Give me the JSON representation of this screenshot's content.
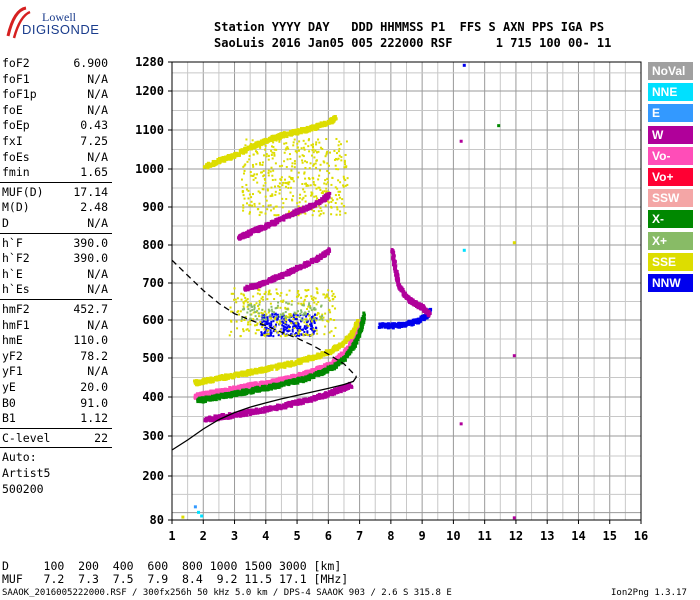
{
  "logo": {
    "line1": "Lowell",
    "line2": "DIGISONDE"
  },
  "header": {
    "line1": "Station YYYY DAY   DDD HHMMSS P1  FFS S AXN PPS IGA PS",
    "line2": "SaoLuis 2016 Jan05 005 222000 RSF      1 715 100 00- 11"
  },
  "params": {
    "group1": [
      {
        "label": "foF2",
        "value": "6.900"
      },
      {
        "label": "foF1",
        "value": "N/A"
      },
      {
        "label": "foF1p",
        "value": "N/A"
      },
      {
        "label": "foE",
        "value": "N/A"
      },
      {
        "label": "foEp",
        "value": "0.43"
      },
      {
        "label": "fxI",
        "value": "7.25"
      },
      {
        "label": "foEs",
        "value": "N/A"
      },
      {
        "label": "fmin",
        "value": "1.65"
      }
    ],
    "group2": [
      {
        "label": "MUF(D)",
        "value": "17.14"
      },
      {
        "label": "M(D)",
        "value": "2.48"
      },
      {
        "label": "D",
        "value": "N/A"
      }
    ],
    "group3": [
      {
        "label": "h`F",
        "value": "390.0"
      },
      {
        "label": "h`F2",
        "value": "390.0"
      },
      {
        "label": "h`E",
        "value": "N/A"
      },
      {
        "label": "h`Es",
        "value": "N/A"
      }
    ],
    "group4": [
      {
        "label": "hmF2",
        "value": "452.7"
      },
      {
        "label": "hmF1",
        "value": "N/A"
      },
      {
        "label": "hmE",
        "value": "110.0"
      },
      {
        "label": "yF2",
        "value": "78.2"
      },
      {
        "label": "yF1",
        "value": "N/A"
      },
      {
        "label": "yE",
        "value": "20.0"
      },
      {
        "label": "B0",
        "value": "91.0"
      },
      {
        "label": "B1",
        "value": "1.12"
      }
    ],
    "clevel": {
      "label": "C-level",
      "value": "22"
    },
    "auto": [
      "Auto:",
      "Artist5",
      "500200"
    ]
  },
  "legend": [
    {
      "label": "NoVal",
      "bg": "#a0a0a0",
      "fg": "#ffffff"
    },
    {
      "label": "NNE",
      "bg": "#00e0ff",
      "fg": "#ffffff"
    },
    {
      "label": "E",
      "bg": "#3399ff",
      "fg": "#ffffff"
    },
    {
      "label": "W",
      "bg": "#b0009a",
      "fg": "#ffffff"
    },
    {
      "label": "Vo-",
      "bg": "#ff4db8",
      "fg": "#ffffff"
    },
    {
      "label": "Vo+",
      "bg": "#ff0033",
      "fg": "#ffffff"
    },
    {
      "label": "SSW",
      "bg": "#f4a6a6",
      "fg": "#ffffff"
    },
    {
      "label": "X-",
      "bg": "#008800",
      "fg": "#ffffff"
    },
    {
      "label": "X+",
      "bg": "#88bb66",
      "fg": "#ffffff"
    },
    {
      "label": "SSE",
      "bg": "#dddd00",
      "fg": "#ffffff"
    },
    {
      "label": "NNW",
      "bg": "#0000ee",
      "fg": "#ffffff"
    }
  ],
  "footer": {
    "row1": "D     100  200  400  600  800 1000 1500 3000 [km]",
    "row2": "MUF   7.2  7.3  7.5  7.9  8.4  9.2 11.5 17.1 [MHz]",
    "note_left": "SAAOK_2016005222000.RSF / 300fx256h 50 kHz 5.0 km / DPS-4 SAAOK 903 / 2.6 S 315.8 E",
    "note_right": "Ion2Png 1.3.17"
  },
  "chart_data": {
    "type": "scatter",
    "xlim": [
      1,
      16
    ],
    "ylim": [
      80,
      1280
    ],
    "xticks": [
      1,
      2,
      3,
      4,
      5,
      6,
      7,
      8,
      9,
      10,
      11,
      12,
      13,
      14,
      15,
      16
    ],
    "yticks": [
      80,
      200,
      300,
      400,
      500,
      600,
      700,
      800,
      900,
      1000,
      1100,
      1200,
      1280
    ],
    "ytick_labels": [
      "80",
      "200",
      "300",
      "400",
      "500",
      "600",
      "700",
      "800",
      "900",
      "1000",
      "1100",
      "1200",
      "1280"
    ],
    "xtick_labels": [
      "1",
      "2",
      "3",
      "4",
      "5",
      "6",
      "7",
      "8",
      "9",
      "10",
      "11",
      "12",
      "13",
      "14",
      "15",
      "16"
    ],
    "grid": true,
    "profile_solid": [
      [
        1.0,
        265
      ],
      [
        1.5,
        290
      ],
      [
        2.0,
        318
      ],
      [
        2.5,
        342
      ],
      [
        3.0,
        360
      ],
      [
        3.5,
        374
      ],
      [
        4.0,
        385
      ],
      [
        4.5,
        395
      ],
      [
        5.0,
        404
      ],
      [
        5.5,
        413
      ],
      [
        6.0,
        422
      ],
      [
        6.5,
        432
      ],
      [
        6.8,
        440
      ],
      [
        6.9,
        452
      ]
    ],
    "profile_dashed": [
      [
        1.0,
        760
      ],
      [
        1.5,
        720
      ],
      [
        2.0,
        680
      ],
      [
        2.5,
        645
      ],
      [
        3.0,
        617
      ],
      [
        3.5,
        600
      ],
      [
        4.0,
        585
      ],
      [
        4.5,
        568
      ],
      [
        5.0,
        552
      ],
      [
        5.5,
        533
      ],
      [
        6.0,
        510
      ],
      [
        6.5,
        485
      ],
      [
        6.9,
        452
      ]
    ],
    "traces": [
      {
        "name": "F-trace-lower",
        "color": "#ff4db8",
        "points": [
          [
            1.7,
            405
          ],
          [
            2.0,
            410
          ],
          [
            2.5,
            418
          ],
          [
            3.0,
            425
          ],
          [
            3.5,
            433
          ],
          [
            4.0,
            440
          ],
          [
            4.5,
            448
          ],
          [
            5.0,
            458
          ],
          [
            5.5,
            470
          ],
          [
            6.0,
            487
          ],
          [
            6.3,
            505
          ],
          [
            6.6,
            530
          ],
          [
            6.8,
            560
          ],
          [
            7.0,
            600
          ]
        ]
      },
      {
        "name": "F-trace-x",
        "color": "#008800",
        "points": [
          [
            1.8,
            395
          ],
          [
            2.2,
            400
          ],
          [
            2.7,
            408
          ],
          [
            3.2,
            415
          ],
          [
            3.7,
            423
          ],
          [
            4.2,
            431
          ],
          [
            4.7,
            440
          ],
          [
            5.2,
            450
          ],
          [
            5.7,
            465
          ],
          [
            6.1,
            480
          ],
          [
            6.5,
            505
          ],
          [
            6.8,
            540
          ],
          [
            7.0,
            580
          ],
          [
            7.1,
            620
          ]
        ]
      },
      {
        "name": "F-trace-upper",
        "color": "#dddd00",
        "points": [
          [
            1.7,
            440
          ],
          [
            2.0,
            445
          ],
          [
            2.5,
            452
          ],
          [
            3.0,
            460
          ],
          [
            3.5,
            468
          ],
          [
            4.0,
            476
          ],
          [
            4.5,
            484
          ],
          [
            5.0,
            494
          ],
          [
            5.5,
            506
          ],
          [
            6.0,
            520
          ],
          [
            6.4,
            540
          ],
          [
            6.7,
            565
          ],
          [
            6.9,
            600
          ]
        ]
      },
      {
        "name": "low-W",
        "color": "#b0009a",
        "points": [
          [
            2.0,
            345
          ],
          [
            2.5,
            352
          ],
          [
            3.0,
            358
          ],
          [
            3.5,
            365
          ],
          [
            4.0,
            372
          ],
          [
            4.5,
            380
          ],
          [
            5.0,
            390
          ],
          [
            5.5,
            400
          ],
          [
            6.0,
            413
          ],
          [
            6.4,
            425
          ],
          [
            6.7,
            435
          ]
        ]
      },
      {
        "name": "multi-hop-1",
        "color": "#b0009a",
        "points": [
          [
            3.1,
            822
          ],
          [
            3.4,
            834
          ],
          [
            3.8,
            848
          ],
          [
            4.2,
            862
          ],
          [
            4.6,
            878
          ],
          [
            5.0,
            893
          ],
          [
            5.4,
            906
          ],
          [
            5.8,
            924
          ],
          [
            6.0,
            938
          ]
        ]
      },
      {
        "name": "multi-hop-1b",
        "color": "#b0009a",
        "points": [
          [
            3.3,
            690
          ],
          [
            3.7,
            698
          ],
          [
            4.1,
            712
          ],
          [
            4.5,
            725
          ],
          [
            4.9,
            740
          ],
          [
            5.3,
            755
          ],
          [
            5.7,
            772
          ],
          [
            6.0,
            790
          ]
        ]
      },
      {
        "name": "es-like",
        "color": "#0000ee",
        "points": [
          [
            7.6,
            590
          ],
          [
            8.0,
            588
          ],
          [
            8.4,
            592
          ],
          [
            8.8,
            600
          ],
          [
            9.1,
            615
          ],
          [
            9.2,
            630
          ]
        ]
      },
      {
        "name": "W-hook",
        "color": "#b0009a",
        "points": [
          [
            8.0,
            790
          ],
          [
            8.1,
            740
          ],
          [
            8.2,
            700
          ],
          [
            8.4,
            670
          ],
          [
            8.6,
            655
          ],
          [
            8.8,
            645
          ],
          [
            9.0,
            635
          ],
          [
            9.2,
            620
          ]
        ]
      },
      {
        "name": "yellow-top",
        "color": "#dddd00",
        "points": [
          [
            2.0,
            1010
          ],
          [
            2.5,
            1025
          ],
          [
            3.0,
            1040
          ],
          [
            3.5,
            1060
          ],
          [
            4.0,
            1078
          ],
          [
            4.5,
            1090
          ],
          [
            5.0,
            1100
          ],
          [
            5.5,
            1110
          ],
          [
            6.0,
            1125
          ],
          [
            6.2,
            1135
          ]
        ]
      }
    ],
    "clouds": [
      {
        "name": "upper-yellow",
        "color": "#dddd00",
        "x": [
          3.2,
          6.6
        ],
        "y": [
          880,
          1080
        ],
        "n": 420
      },
      {
        "name": "blue-f-cloud",
        "color": "#0000ee",
        "x": [
          3.8,
          5.6
        ],
        "y": [
          560,
          620
        ],
        "n": 260
      },
      {
        "name": "yellow-mid",
        "color": "#dddd00",
        "x": [
          2.8,
          6.2
        ],
        "y": [
          560,
          690
        ],
        "n": 260
      },
      {
        "name": "green-mid",
        "color": "#88bb66",
        "x": [
          3.2,
          5.8
        ],
        "y": [
          600,
          650
        ],
        "n": 90
      }
    ],
    "extra_points": [
      {
        "x": 10.3,
        "y": 1275,
        "color": "#0000ee"
      },
      {
        "x": 11.4,
        "y": 1115,
        "color": "#008800"
      },
      {
        "x": 10.2,
        "y": 1075,
        "color": "#b0009a"
      },
      {
        "x": 10.3,
        "y": 790,
        "color": "#00e0ff"
      },
      {
        "x": 11.9,
        "y": 510,
        "color": "#b0009a"
      },
      {
        "x": 10.2,
        "y": 335,
        "color": "#b0009a"
      },
      {
        "x": 11.9,
        "y": 90,
        "color": "#b0009a"
      },
      {
        "x": 11.9,
        "y": 810,
        "color": "#dddd00"
      },
      {
        "x": 1.8,
        "y": 105,
        "color": "#00e0ff"
      },
      {
        "x": 1.9,
        "y": 95,
        "color": "#00e0ff"
      },
      {
        "x": 1.7,
        "y": 120,
        "color": "#3399ff"
      },
      {
        "x": 1.3,
        "y": 92,
        "color": "#dddd00"
      }
    ]
  }
}
